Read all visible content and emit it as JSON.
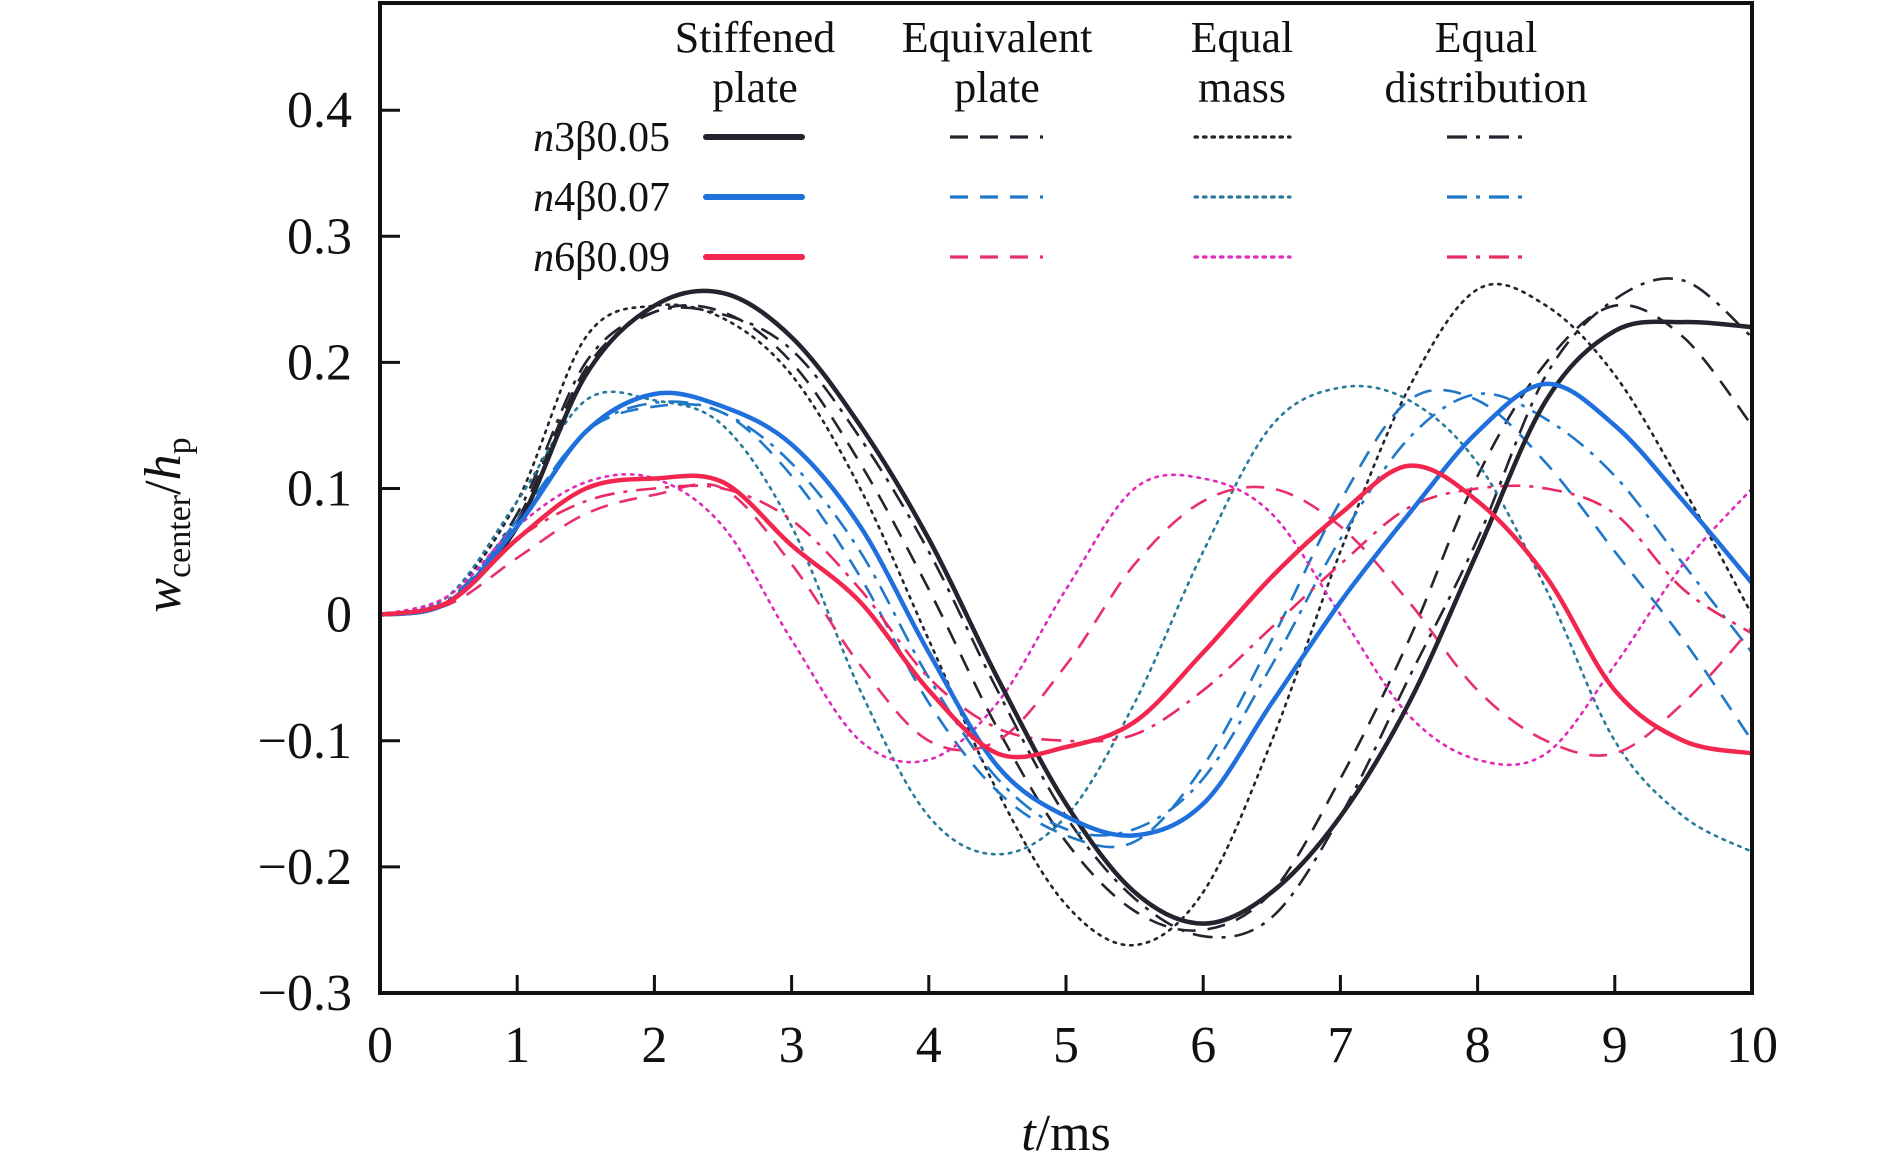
{
  "chart_data": {
    "type": "line",
    "title": "",
    "xlabel": "t/ms",
    "xlabel_parts": {
      "var": "t",
      "unit": "/ms"
    },
    "ylabel": "w_center/h_p",
    "ylabel_parts": {
      "var": "w",
      "sub": "center",
      "sep": "/",
      "var2": "h",
      "sub2": "p"
    },
    "xlim": [
      0,
      10
    ],
    "ylim": [
      -0.3,
      0.485
    ],
    "xticks": [
      0,
      1,
      2,
      3,
      4,
      5,
      6,
      7,
      8,
      9,
      10
    ],
    "xtick_labels": [
      "0",
      "1",
      "2",
      "3",
      "4",
      "5",
      "6",
      "7",
      "8",
      "9",
      "10"
    ],
    "yticks": [
      -0.3,
      -0.2,
      -0.1,
      0,
      0.1,
      0.2,
      0.3,
      0.4
    ],
    "ytick_labels": [
      "−0.3",
      "−0.2",
      "−0.1",
      "0",
      "0.1",
      "0.2",
      "0.3",
      "0.4"
    ],
    "grid": false,
    "legend": {
      "placement": "top",
      "columns": [
        {
          "line1": "Stiffened",
          "line2": "plate",
          "style": "solid"
        },
        {
          "line1": "Equivalent",
          "line2": "plate",
          "style": "dashed"
        },
        {
          "line1": "Equal",
          "line2": "mass",
          "style": "dotted"
        },
        {
          "line1": "Equal",
          "line2": "distribution",
          "style": "dashdot"
        }
      ],
      "rows": [
        {
          "label_n": "n",
          "label_rest": "3β0.05",
          "label": "n3β0.05"
        },
        {
          "label_n": "n",
          "label_rest": "4β0.07",
          "label": "n4β0.07"
        },
        {
          "label_n": "n",
          "label_rest": "6β0.09",
          "label": "n6β0.09"
        }
      ]
    },
    "colors": {
      "n3_solid": "#24242e",
      "n3_dashed": "#24242e",
      "n3_dotted": "#24242e",
      "n3_dashdot": "#24242e",
      "n4_solid": "#1f6fdc",
      "n4_dashed": "#1f78c8",
      "n4_dotted": "#2a7a9c",
      "n4_dashdot": "#1f78c8",
      "n6_solid": "#f2264e",
      "n6_dashed": "#e8306e",
      "n6_dotted": "#e02ab8",
      "n6_dashdot": "#ea2a62"
    },
    "x": [
      0,
      0.5,
      1.0,
      1.5,
      2.0,
      2.5,
      3.0,
      3.5,
      4.0,
      4.5,
      5.0,
      5.5,
      6.0,
      6.5,
      7.0,
      7.5,
      8.0,
      8.5,
      9.0,
      9.5,
      10.0
    ],
    "series": [
      {
        "name": "n3β0.05 Stiffened plate",
        "row": 0,
        "style": "solid",
        "color_key": "n3_solid",
        "values": [
          0,
          0.01,
          0.07,
          0.19,
          0.245,
          0.255,
          0.22,
          0.15,
          0.06,
          -0.05,
          -0.15,
          -0.22,
          -0.245,
          -0.22,
          -0.16,
          -0.07,
          0.05,
          0.17,
          0.225,
          0.232,
          0.228
        ]
      },
      {
        "name": "n3β0.05 Equivalent plate",
        "row": 0,
        "style": "dashed",
        "color_key": "n3_dashed",
        "values": [
          0,
          0.01,
          0.075,
          0.195,
          0.24,
          0.24,
          0.2,
          0.12,
          0.02,
          -0.09,
          -0.18,
          -0.235,
          -0.25,
          -0.22,
          -0.13,
          -0.02,
          0.11,
          0.2,
          0.245,
          0.22,
          0.15
        ]
      },
      {
        "name": "n3β0.05 Equal mass",
        "row": 0,
        "style": "dotted",
        "color_key": "n3_dotted",
        "values": [
          0,
          0.015,
          0.09,
          0.22,
          0.245,
          0.235,
          0.19,
          0.1,
          -0.02,
          -0.14,
          -0.23,
          -0.262,
          -0.22,
          -0.1,
          0.05,
          0.18,
          0.258,
          0.245,
          0.19,
          0.1,
          0.0
        ]
      },
      {
        "name": "n3β0.05 Equal distribution",
        "row": 0,
        "style": "dashdot",
        "color_key": "n3_dashdot",
        "values": [
          0,
          0.012,
          0.08,
          0.2,
          0.24,
          0.238,
          0.21,
          0.14,
          0.05,
          -0.06,
          -0.16,
          -0.225,
          -0.255,
          -0.24,
          -0.16,
          -0.05,
          0.06,
          0.19,
          0.25,
          0.265,
          0.22
        ]
      },
      {
        "name": "n4β0.07 Stiffened plate",
        "row": 1,
        "style": "solid",
        "color_key": "n4_solid",
        "values": [
          0,
          0.01,
          0.07,
          0.145,
          0.175,
          0.165,
          0.135,
          0.07,
          -0.03,
          -0.12,
          -0.16,
          -0.175,
          -0.15,
          -0.07,
          0.01,
          0.08,
          0.145,
          0.183,
          0.15,
          0.09,
          0.025
        ]
      },
      {
        "name": "n4β0.07 Equivalent plate",
        "row": 1,
        "style": "dashed",
        "color_key": "n4_dashed",
        "values": [
          0,
          0.01,
          0.075,
          0.145,
          0.165,
          0.16,
          0.11,
          0.03,
          -0.07,
          -0.14,
          -0.175,
          -0.18,
          -0.12,
          -0.02,
          0.09,
          0.17,
          0.17,
          0.12,
          0.05,
          -0.02,
          -0.1
        ]
      },
      {
        "name": "n4β0.07 Equal mass",
        "row": 1,
        "style": "dotted",
        "color_key": "n4_dotted",
        "values": [
          0,
          0.015,
          0.09,
          0.17,
          0.17,
          0.15,
          0.07,
          -0.06,
          -0.16,
          -0.19,
          -0.16,
          -0.07,
          0.05,
          0.15,
          0.18,
          0.17,
          0.12,
          0.02,
          -0.1,
          -0.16,
          -0.188
        ]
      },
      {
        "name": "n4β0.07 Equal distribution",
        "row": 1,
        "style": "dashdot",
        "color_key": "n4_dashdot",
        "values": [
          0,
          0.012,
          0.075,
          0.145,
          0.168,
          0.16,
          0.12,
          0.05,
          -0.05,
          -0.13,
          -0.17,
          -0.17,
          -0.13,
          -0.04,
          0.06,
          0.14,
          0.175,
          0.155,
          0.11,
          0.04,
          -0.03
        ]
      },
      {
        "name": "n6β0.09 Stiffened plate",
        "row": 2,
        "style": "solid",
        "color_key": "n6_solid",
        "values": [
          0,
          0.01,
          0.06,
          0.1,
          0.108,
          0.105,
          0.055,
          0.01,
          -0.06,
          -0.11,
          -0.105,
          -0.085,
          -0.03,
          0.03,
          0.08,
          0.118,
          0.09,
          0.03,
          -0.06,
          -0.1,
          -0.11
        ]
      },
      {
        "name": "n6β0.09 Equivalent plate",
        "row": 2,
        "style": "dashed",
        "color_key": "n6_dashed",
        "values": [
          0,
          0.008,
          0.045,
          0.08,
          0.095,
          0.1,
          0.04,
          -0.04,
          -0.1,
          -0.1,
          -0.04,
          0.04,
          0.09,
          0.1,
          0.07,
          0.01,
          -0.06,
          -0.1,
          -0.11,
          -0.07,
          -0.01
        ]
      },
      {
        "name": "n6β0.09 Equal mass",
        "row": 2,
        "style": "dotted",
        "color_key": "n6_dotted",
        "values": [
          0,
          0.015,
          0.07,
          0.105,
          0.108,
          0.07,
          -0.02,
          -0.1,
          -0.115,
          -0.07,
          0.02,
          0.1,
          0.108,
          0.08,
          0.0,
          -0.08,
          -0.115,
          -0.11,
          -0.04,
          0.04,
          0.1
        ]
      },
      {
        "name": "n6β0.09 Equal distribution",
        "row": 2,
        "style": "dashdot",
        "color_key": "n6_dashdot",
        "values": [
          0,
          0.01,
          0.06,
          0.09,
          0.1,
          0.1,
          0.075,
          0.02,
          -0.05,
          -0.09,
          -0.1,
          -0.095,
          -0.06,
          -0.01,
          0.04,
          0.085,
          0.1,
          0.1,
          0.08,
          0.02,
          -0.015
        ]
      }
    ]
  }
}
